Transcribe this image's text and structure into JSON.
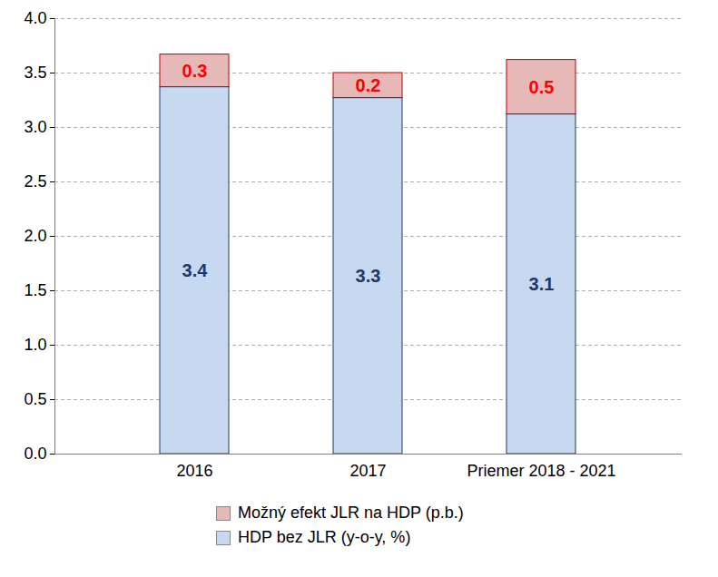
{
  "chart_data": {
    "type": "bar",
    "stacked": true,
    "categories": [
      "2016",
      "2017",
      "Priemer 2018 - 2021"
    ],
    "series": [
      {
        "name": "HDP bez JLR (y-o-y, %)",
        "color": "#c6d9f1",
        "values": [
          3.37,
          3.27,
          3.12
        ],
        "value_labels": [
          "3.4",
          "3.3",
          "3.1"
        ]
      },
      {
        "name": "Možný efekt JLR na HDP (p.b.)",
        "color": "#e6b9b8",
        "values": [
          0.3,
          0.23,
          0.5
        ],
        "value_labels": [
          "0.3",
          "0.2",
          "0.5"
        ]
      }
    ],
    "ylim": [
      0,
      4
    ],
    "yticks": [
      {
        "value": 0,
        "label": "0.0"
      },
      {
        "value": 0.5,
        "label": "0.5"
      },
      {
        "value": 1,
        "label": "1.0"
      },
      {
        "value": 1.5,
        "label": "1.5"
      },
      {
        "value": 2,
        "label": "2.0"
      },
      {
        "value": 2.5,
        "label": "2.5"
      },
      {
        "value": 3,
        "label": "3.0"
      },
      {
        "value": 3.5,
        "label": "3.5"
      },
      {
        "value": 4,
        "label": "4.0"
      }
    ],
    "grid": true,
    "data_labels": true,
    "legend": "bottom"
  }
}
